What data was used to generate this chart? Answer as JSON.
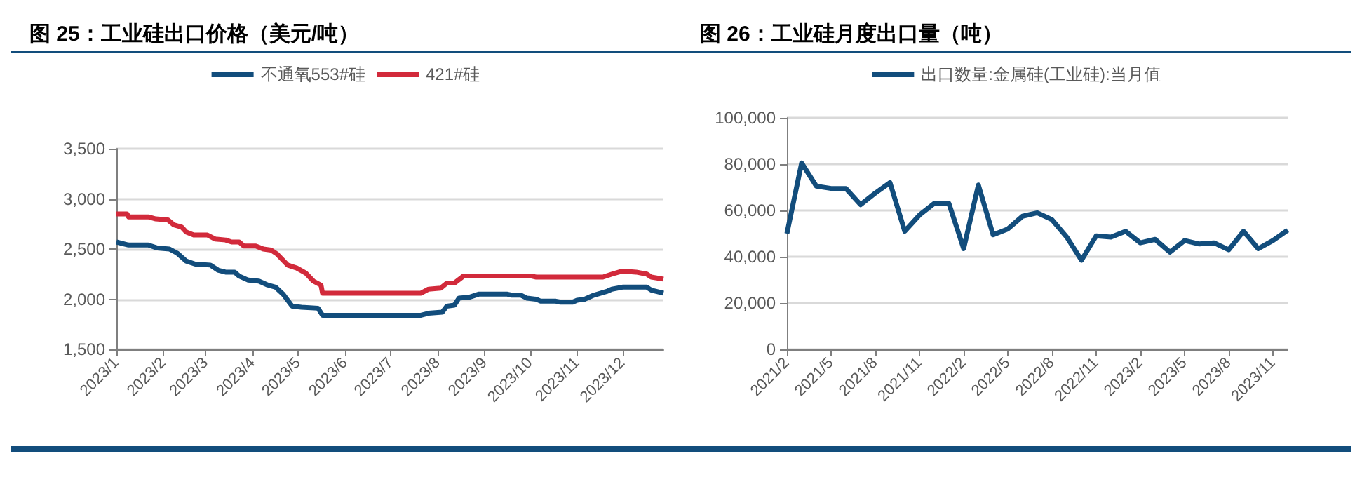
{
  "chart_data": [
    {
      "type": "line",
      "title": "图 25：工业硅出口价格（美元/吨）",
      "legend": "top",
      "grid": "y",
      "xlim": [
        "2023-01-01",
        "2023-12-28"
      ],
      "xticks": [
        {
          "value": "2023-01-01",
          "label": "2023/1"
        },
        {
          "value": "2023-02-01",
          "label": "2023/2"
        },
        {
          "value": "2023-03-01",
          "label": "2023/3"
        },
        {
          "value": "2023-04-01",
          "label": "2023/4"
        },
        {
          "value": "2023-05-01",
          "label": "2023/5"
        },
        {
          "value": "2023-06-01",
          "label": "2023/6"
        },
        {
          "value": "2023-07-01",
          "label": "2023/7"
        },
        {
          "value": "2023-08-01",
          "label": "2023/8"
        },
        {
          "value": "2023-09-01",
          "label": "2023/9"
        },
        {
          "value": "2023-10-01",
          "label": "2023/10"
        },
        {
          "value": "2023-11-01",
          "label": "2023/11"
        },
        {
          "value": "2023-12-01",
          "label": "2023/12"
        }
      ],
      "ylim": [
        1500,
        3500
      ],
      "yticks": [
        {
          "value": 1500,
          "label": "1,500"
        },
        {
          "value": 2000,
          "label": "2,000"
        },
        {
          "value": 2500,
          "label": "2,500"
        },
        {
          "value": 3000,
          "label": "3,000"
        },
        {
          "value": 3500,
          "label": "3,500"
        }
      ],
      "series": [
        {
          "name": "不通氧553#硅",
          "color": "#124d7c",
          "x": [
            "2023-01-01",
            "2023-01-09",
            "2023-01-22",
            "2023-01-28",
            "2023-02-05",
            "2023-02-10",
            "2023-02-16",
            "2023-02-22",
            "2023-03-04",
            "2023-03-09",
            "2023-03-14",
            "2023-03-20",
            "2023-03-23",
            "2023-03-29",
            "2023-04-05",
            "2023-04-11",
            "2023-04-16",
            "2023-04-21",
            "2023-04-27",
            "2023-05-03",
            "2023-05-14",
            "2023-05-17",
            "2023-07-21",
            "2023-07-26",
            "2023-08-04",
            "2023-08-07",
            "2023-08-12",
            "2023-08-15",
            "2023-08-22",
            "2023-08-28",
            "2023-09-16",
            "2023-09-19",
            "2023-09-25",
            "2023-09-29",
            "2023-10-05",
            "2023-10-08",
            "2023-10-18",
            "2023-10-21",
            "2023-10-29",
            "2023-11-01",
            "2023-11-06",
            "2023-11-12",
            "2023-11-21",
            "2023-11-24",
            "2023-12-01",
            "2023-12-17",
            "2023-12-20",
            "2023-12-28"
          ],
          "values": [
            2570,
            2540,
            2540,
            2510,
            2500,
            2460,
            2380,
            2350,
            2340,
            2290,
            2270,
            2270,
            2230,
            2190,
            2180,
            2140,
            2120,
            2050,
            1930,
            1920,
            1910,
            1840,
            1840,
            1860,
            1870,
            1930,
            1940,
            2010,
            2020,
            2050,
            2050,
            2040,
            2040,
            2010,
            2000,
            1980,
            1980,
            1970,
            1970,
            1990,
            2000,
            2040,
            2080,
            2100,
            2120,
            2120,
            2090,
            2060
          ]
        },
        {
          "name": "421#硅",
          "color": "#d22a3b",
          "x": [
            "2023-01-01",
            "2023-01-08",
            "2023-01-09",
            "2023-01-22",
            "2023-01-27",
            "2023-02-04",
            "2023-02-08",
            "2023-02-13",
            "2023-02-16",
            "2023-02-21",
            "2023-03-02",
            "2023-03-07",
            "2023-03-14",
            "2023-03-18",
            "2023-03-23",
            "2023-03-26",
            "2023-04-03",
            "2023-04-08",
            "2023-04-13",
            "2023-04-17",
            "2023-04-24",
            "2023-04-30",
            "2023-05-06",
            "2023-05-11",
            "2023-05-16",
            "2023-05-17",
            "2023-07-21",
            "2023-07-26",
            "2023-08-03",
            "2023-08-07",
            "2023-08-12",
            "2023-08-18",
            "2023-10-02",
            "2023-10-05",
            "2023-11-18",
            "2023-11-24",
            "2023-12-01",
            "2023-12-10",
            "2023-12-17",
            "2023-12-20",
            "2023-12-28"
          ],
          "values": [
            2850,
            2850,
            2820,
            2820,
            2800,
            2790,
            2740,
            2720,
            2670,
            2640,
            2640,
            2600,
            2590,
            2570,
            2570,
            2530,
            2530,
            2500,
            2490,
            2450,
            2340,
            2310,
            2260,
            2180,
            2140,
            2060,
            2060,
            2100,
            2110,
            2160,
            2160,
            2230,
            2230,
            2220,
            2220,
            2250,
            2280,
            2270,
            2250,
            2220,
            2200
          ]
        }
      ]
    },
    {
      "type": "line",
      "title": "图 26：工业硅月度出口量（吨）",
      "legend": "top",
      "grid": "y",
      "categories": [
        "2021/2",
        null,
        null,
        "2021/5",
        null,
        null,
        "2021/8",
        null,
        null,
        "2021/11",
        null,
        null,
        "2022/2",
        null,
        null,
        "2022/5",
        null,
        null,
        "2022/8",
        null,
        null,
        "2022/11",
        null,
        null,
        "2023/2",
        null,
        null,
        "2023/5",
        null,
        null,
        "2023/8",
        null,
        null,
        "2023/11",
        null
      ],
      "ylim": [
        0,
        100000
      ],
      "yticks": [
        0,
        {
          "value": 20000,
          "label": "20,000"
        },
        {
          "value": 40000,
          "label": "40,000"
        },
        {
          "value": 60000,
          "label": "60,000"
        },
        {
          "value": 80000,
          "label": "80,000"
        },
        {
          "value": 100000,
          "label": "100,000"
        }
      ],
      "series": [
        {
          "name": "出口数量:金属硅(工业硅):当月值",
          "color": "#124d7c",
          "values": [
            50000,
            80500,
            70500,
            69500,
            69500,
            62500,
            67500,
            72000,
            51000,
            58000,
            63000,
            63000,
            43500,
            71000,
            49500,
            52000,
            57500,
            59000,
            56000,
            48500,
            38500,
            49000,
            48500,
            51000,
            46000,
            47500,
            42000,
            47000,
            45500,
            46000,
            43000,
            51000,
            43500,
            47000,
            51500
          ]
        }
      ]
    }
  ]
}
